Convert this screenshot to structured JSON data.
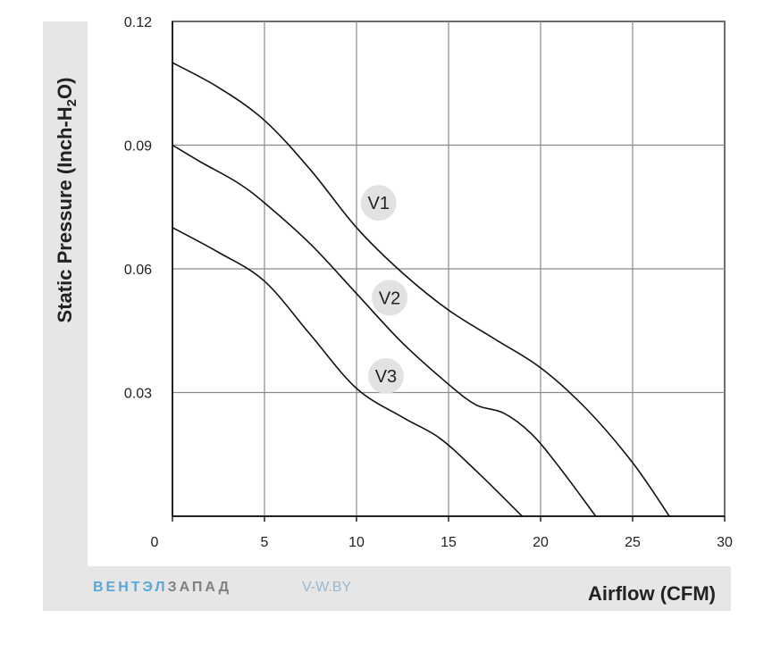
{
  "chart_data": {
    "type": "line",
    "xlabel": "Airflow (CFM)",
    "ylabel_parts": [
      "Static Pressure (Inch-H",
      "2",
      "O)"
    ],
    "xlim": [
      0,
      30
    ],
    "ylim": [
      0,
      0.12
    ],
    "x_ticks": [
      0,
      5,
      10,
      15,
      20,
      25,
      30
    ],
    "x_tick_labels": [
      "0",
      "5",
      "10",
      "15",
      "20",
      "25",
      "30"
    ],
    "y_ticks": [
      0.03,
      0.06,
      0.09,
      0.12
    ],
    "y_tick_labels": [
      "0.03",
      "0.06",
      "0.09",
      "0.12"
    ],
    "grid": true,
    "series": [
      {
        "name": "V1",
        "label_at": [
          11.2,
          0.076
        ],
        "points": [
          [
            0,
            0.11
          ],
          [
            2.5,
            0.104
          ],
          [
            5,
            0.096
          ],
          [
            7.5,
            0.084
          ],
          [
            10,
            0.07
          ],
          [
            12.5,
            0.059
          ],
          [
            15,
            0.05
          ],
          [
            17.5,
            0.043
          ],
          [
            20,
            0.036
          ],
          [
            22.5,
            0.026
          ],
          [
            25,
            0.013
          ],
          [
            27,
            0.0
          ]
        ]
      },
      {
        "name": "V2",
        "label_at": [
          11.8,
          0.053
        ],
        "points": [
          [
            0,
            0.09
          ],
          [
            1.5,
            0.086
          ],
          [
            3.5,
            0.081
          ],
          [
            5,
            0.076
          ],
          [
            7.5,
            0.066
          ],
          [
            10,
            0.054
          ],
          [
            12.5,
            0.042
          ],
          [
            15,
            0.032
          ],
          [
            16.5,
            0.027
          ],
          [
            18,
            0.025
          ],
          [
            19.5,
            0.02
          ],
          [
            21,
            0.012
          ],
          [
            23,
            0.0
          ]
        ]
      },
      {
        "name": "V3",
        "label_at": [
          11.6,
          0.034
        ],
        "points": [
          [
            0,
            0.07
          ],
          [
            2.5,
            0.064
          ],
          [
            5,
            0.057
          ],
          [
            7.5,
            0.044
          ],
          [
            10,
            0.031
          ],
          [
            12.5,
            0.024
          ],
          [
            14.5,
            0.019
          ],
          [
            16.5,
            0.011
          ],
          [
            19,
            0.0
          ]
        ]
      }
    ]
  },
  "brand": {
    "part1": "ВЕНТЭЛ",
    "part2": "ЗАПАД",
    "site_prefix": "V-",
    "site_rest": "W.BY"
  },
  "colors": {
    "panel_bg": "#e6e6e6",
    "grid": "#8a8a8a",
    "curve": "#111111",
    "brand_blue": "#5aa7d8",
    "brand_gray": "#808080"
  }
}
